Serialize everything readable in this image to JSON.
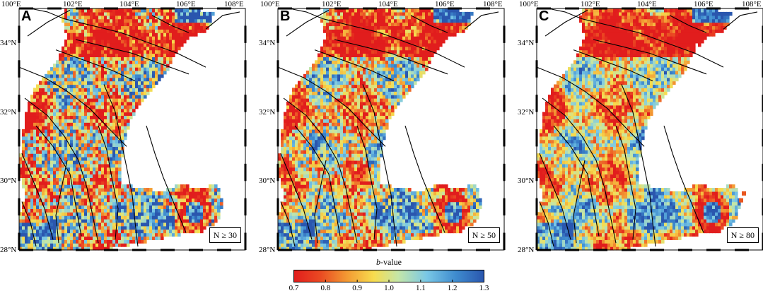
{
  "lon_labels": [
    "100°E",
    "102°E",
    "104°E",
    "106°E",
    "108°E"
  ],
  "lat_labels": [
    "34°N",
    "32°N",
    "30°N",
    "28°N"
  ],
  "panels": [
    {
      "letter": "A",
      "n_label": "N ≥ 30"
    },
    {
      "letter": "B",
      "n_label": "N ≥ 50"
    },
    {
      "letter": "C",
      "n_label": "N ≥ 80"
    }
  ],
  "colorbar": {
    "title_italic": "b",
    "title_rest": "-value",
    "ticks": [
      "0.7",
      "0.8",
      "0.9",
      "1.0",
      "1.1",
      "1.2",
      "1.3"
    ],
    "range": [
      0.7,
      1.3
    ],
    "colors": [
      "#e8231e",
      "#f08a2c",
      "#f7d54a",
      "#cfe8a0",
      "#7fcde8",
      "#3d8fd0",
      "#2f5bb3"
    ]
  },
  "map_extent": {
    "lon": [
      100,
      108
    ],
    "lat": [
      28,
      35
    ]
  }
}
